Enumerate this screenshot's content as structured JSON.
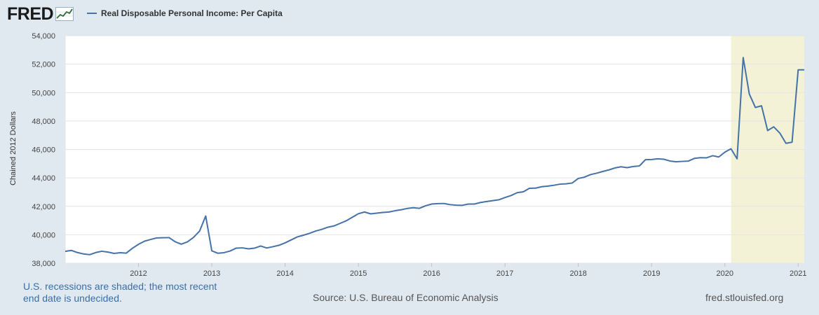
{
  "header": {
    "logo_text": "FRED",
    "logo_icon": "chart-line-icon"
  },
  "legend": {
    "label": "Real Disposable Personal Income: Per Capita",
    "color": "#4572a7"
  },
  "footer": {
    "recession_note": "U.S. recessions are shaded; the most recent end date is undecided.",
    "source": "Source: U.S. Bureau of Economic Analysis",
    "url": "fred.stlouisfed.org"
  },
  "chart_data": {
    "type": "line",
    "title": "",
    "xlabel": "",
    "ylabel": "Chained 2012 Dollars",
    "ylim": [
      38000,
      54000
    ],
    "xlim": [
      "2011-01-01",
      "2021-02-01"
    ],
    "y_ticks": [
      "38,000",
      "40,000",
      "42,000",
      "44,000",
      "46,000",
      "48,000",
      "50,000",
      "52,000",
      "54,000"
    ],
    "x_ticks": [
      "2012",
      "2013",
      "2014",
      "2015",
      "2016",
      "2017",
      "2018",
      "2019",
      "2020",
      "2021"
    ],
    "grid": true,
    "legend_position": "top-left",
    "recession_shading": {
      "start": "2020-02-01",
      "end": "2021-02-01",
      "color": "#f3f2d7"
    },
    "series": [
      {
        "name": "Real Disposable Personal Income: Per Capita",
        "color": "#4572a7",
        "x": [
          "2011-01",
          "2011-02",
          "2011-03",
          "2011-04",
          "2011-05",
          "2011-06",
          "2011-07",
          "2011-08",
          "2011-09",
          "2011-10",
          "2011-11",
          "2011-12",
          "2012-01",
          "2012-02",
          "2012-03",
          "2012-04",
          "2012-05",
          "2012-06",
          "2012-07",
          "2012-08",
          "2012-09",
          "2012-10",
          "2012-11",
          "2012-12",
          "2013-01",
          "2013-02",
          "2013-03",
          "2013-04",
          "2013-05",
          "2013-06",
          "2013-07",
          "2013-08",
          "2013-09",
          "2013-10",
          "2013-11",
          "2013-12",
          "2014-01",
          "2014-02",
          "2014-03",
          "2014-04",
          "2014-05",
          "2014-06",
          "2014-07",
          "2014-08",
          "2014-09",
          "2014-10",
          "2014-11",
          "2014-12",
          "2015-01",
          "2015-02",
          "2015-03",
          "2015-04",
          "2015-05",
          "2015-06",
          "2015-07",
          "2015-08",
          "2015-09",
          "2015-10",
          "2015-11",
          "2015-12",
          "2016-01",
          "2016-02",
          "2016-03",
          "2016-04",
          "2016-05",
          "2016-06",
          "2016-07",
          "2016-08",
          "2016-09",
          "2016-10",
          "2016-11",
          "2016-12",
          "2017-01",
          "2017-02",
          "2017-03",
          "2017-04",
          "2017-05",
          "2017-06",
          "2017-07",
          "2017-08",
          "2017-09",
          "2017-10",
          "2017-11",
          "2017-12",
          "2018-01",
          "2018-02",
          "2018-03",
          "2018-04",
          "2018-05",
          "2018-06",
          "2018-07",
          "2018-08",
          "2018-09",
          "2018-10",
          "2018-11",
          "2018-12",
          "2019-01",
          "2019-02",
          "2019-03",
          "2019-04",
          "2019-05",
          "2019-06",
          "2019-07",
          "2019-08",
          "2019-09",
          "2019-10",
          "2019-11",
          "2019-12",
          "2020-01",
          "2020-02",
          "2020-03",
          "2020-04",
          "2020-05",
          "2020-06",
          "2020-07",
          "2020-08",
          "2020-09",
          "2020-10",
          "2020-11",
          "2020-12",
          "2021-01",
          "2021-02"
        ],
        "values": [
          38830,
          38900,
          38750,
          38650,
          38600,
          38750,
          38840,
          38780,
          38690,
          38740,
          38710,
          39050,
          39330,
          39550,
          39670,
          39780,
          39790,
          39800,
          39510,
          39340,
          39500,
          39810,
          40260,
          41320,
          38870,
          38700,
          38740,
          38860,
          39060,
          39080,
          39010,
          39060,
          39210,
          39070,
          39160,
          39260,
          39430,
          39640,
          39850,
          39970,
          40100,
          40260,
          40380,
          40530,
          40620,
          40800,
          40980,
          41230,
          41480,
          41600,
          41470,
          41520,
          41570,
          41600,
          41690,
          41760,
          41850,
          41900,
          41860,
          42040,
          42160,
          42190,
          42200,
          42120,
          42080,
          42070,
          42160,
          42160,
          42270,
          42340,
          42400,
          42460,
          42620,
          42760,
          42960,
          43020,
          43270,
          43280,
          43380,
          43420,
          43480,
          43560,
          43580,
          43640,
          43960,
          44050,
          44230,
          44330,
          44450,
          44560,
          44700,
          44780,
          44720,
          44800,
          44840,
          45280,
          45290,
          45340,
          45310,
          45190,
          45130,
          45160,
          45180,
          45370,
          45420,
          45410,
          45560,
          45470,
          45810,
          46050,
          45340,
          52460,
          49900,
          48950,
          49070,
          47330,
          47590,
          47150,
          46430,
          46510,
          51600,
          51600
        ]
      }
    ]
  }
}
